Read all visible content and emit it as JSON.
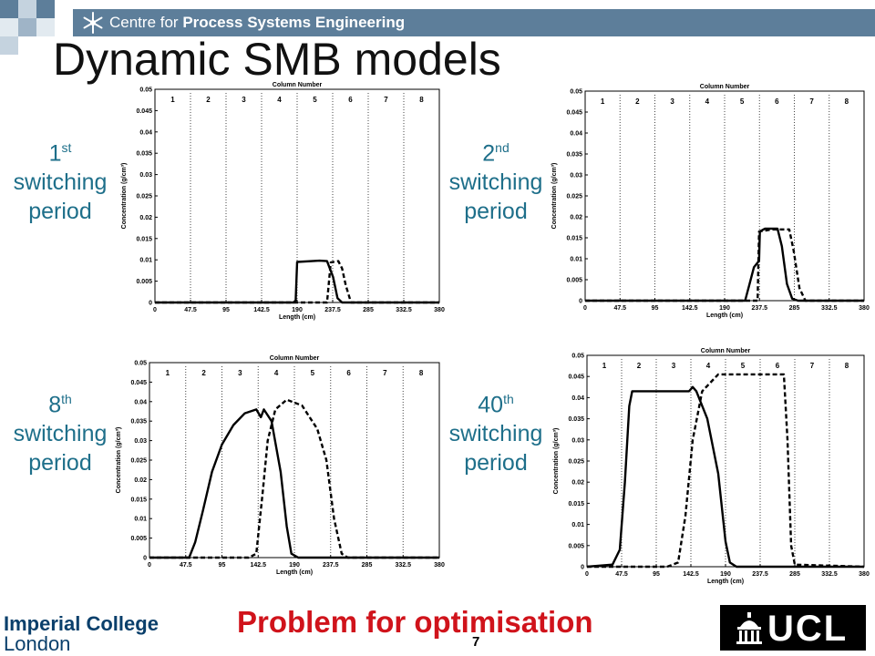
{
  "header": {
    "prefix": "Centre for ",
    "bold": "Process Systems Engineering",
    "accent_color": "#5d7e9a"
  },
  "title": "Dynamic SMB models",
  "labels": [
    {
      "ord": "1",
      "sup": "st",
      "line2": "switching",
      "line3": "period"
    },
    {
      "ord": "2",
      "sup": "nd",
      "line2": "switching",
      "line3": "period"
    },
    {
      "ord": "8",
      "sup": "th",
      "line2": "switching",
      "line3": "period"
    },
    {
      "ord": "40",
      "sup": "th",
      "line2": "switching",
      "line3": "period"
    }
  ],
  "footer": {
    "problem": "Problem for optimisation",
    "page": "7",
    "imperial_line1": "Imperial College",
    "imperial_line2": "London",
    "ucl": "UCL"
  },
  "chart_data": [
    {
      "type": "line",
      "title": "Column Number",
      "xlabel": "Length (cm)",
      "ylabel": "Concentration (g/cm³)",
      "xlim": [
        0,
        380
      ],
      "ylim": [
        0,
        0.05
      ],
      "x_ticks": [
        0,
        47.5,
        95,
        142.5,
        190,
        237.5,
        285,
        332.5,
        380
      ],
      "y_ticks": [
        0,
        0.005,
        0.01,
        0.015,
        0.02,
        0.025,
        0.03,
        0.035,
        0.04,
        0.045,
        0.05
      ],
      "column_numbers": [
        "1",
        "2",
        "3",
        "4",
        "5",
        "6",
        "7",
        "8"
      ],
      "series": [
        {
          "style": "solid",
          "points": [
            [
              0,
              0
            ],
            [
              185,
              0
            ],
            [
              188,
              0.0005
            ],
            [
              190,
              0.0095
            ],
            [
              220,
              0.0098
            ],
            [
              230,
              0.0097
            ],
            [
              238,
              0.006
            ],
            [
              244,
              0.001
            ],
            [
              250,
              0
            ],
            [
              380,
              0
            ]
          ]
        },
        {
          "style": "dashed",
          "points": [
            [
              0,
              0
            ],
            [
              230,
              0
            ],
            [
              235,
              0.0094
            ],
            [
              245,
              0.0097
            ],
            [
              250,
              0.008
            ],
            [
              255,
              0.004
            ],
            [
              262,
              0
            ],
            [
              380,
              0
            ]
          ]
        }
      ]
    },
    {
      "type": "line",
      "title": "Column Number",
      "xlabel": "Length (cm)",
      "ylabel": "Concentration (g/cm³)",
      "xlim": [
        0,
        380
      ],
      "ylim": [
        0,
        0.05
      ],
      "x_ticks": [
        0,
        47.5,
        95,
        142.5,
        190,
        237.5,
        285,
        332.5,
        380
      ],
      "y_ticks": [
        0,
        0.005,
        0.01,
        0.015,
        0.02,
        0.025,
        0.03,
        0.035,
        0.04,
        0.045,
        0.05
      ],
      "column_numbers": [
        "1",
        "2",
        "3",
        "4",
        "5",
        "6",
        "7",
        "8"
      ],
      "series": [
        {
          "style": "solid",
          "points": [
            [
              0,
              0
            ],
            [
              218,
              0
            ],
            [
              224,
              0.004
            ],
            [
              230,
              0.008
            ],
            [
              237,
              0.0095
            ],
            [
              237.5,
              0.0135
            ],
            [
              238,
              0.0165
            ],
            [
              245,
              0.0172
            ],
            [
              262,
              0.0172
            ],
            [
              268,
              0.013
            ],
            [
              275,
              0.004
            ],
            [
              282,
              0.0005
            ],
            [
              290,
              0
            ],
            [
              380,
              0
            ]
          ]
        },
        {
          "style": "dashed",
          "points": [
            [
              0,
              0
            ],
            [
              235,
              0
            ],
            [
              237,
              0.0165
            ],
            [
              255,
              0.017
            ],
            [
              278,
              0.017
            ],
            [
              284,
              0.012
            ],
            [
              292,
              0.003
            ],
            [
              300,
              0
            ],
            [
              380,
              0
            ]
          ]
        }
      ]
    },
    {
      "type": "line",
      "title": "Column Number",
      "xlabel": "Length (cm)",
      "ylabel": "Concentration (g/cm³)",
      "xlim": [
        0,
        380
      ],
      "ylim": [
        0,
        0.05
      ],
      "x_ticks": [
        0,
        47.5,
        95,
        142.5,
        190,
        237.5,
        285,
        332.5,
        380
      ],
      "y_ticks": [
        0,
        0.005,
        0.01,
        0.015,
        0.02,
        0.025,
        0.03,
        0.035,
        0.04,
        0.045,
        0.05
      ],
      "column_numbers": [
        "1",
        "2",
        "3",
        "4",
        "5",
        "6",
        "7",
        "8"
      ],
      "series": [
        {
          "style": "solid",
          "points": [
            [
              0,
              0
            ],
            [
              52,
              0
            ],
            [
              60,
              0.004
            ],
            [
              70,
              0.012
            ],
            [
              82,
              0.022
            ],
            [
              95,
              0.029
            ],
            [
              110,
              0.034
            ],
            [
              125,
              0.037
            ],
            [
              140,
              0.038
            ],
            [
              146,
              0.036
            ],
            [
              150,
              0.038
            ],
            [
              160,
              0.035
            ],
            [
              172,
              0.022
            ],
            [
              180,
              0.008
            ],
            [
              186,
              0.001
            ],
            [
              195,
              0
            ],
            [
              380,
              0
            ]
          ]
        },
        {
          "style": "dashed",
          "points": [
            [
              0,
              0
            ],
            [
              130,
              0
            ],
            [
              140,
              0.001
            ],
            [
              148,
              0.016
            ],
            [
              155,
              0.03
            ],
            [
              165,
              0.038
            ],
            [
              180,
              0.0405
            ],
            [
              200,
              0.039
            ],
            [
              220,
              0.033
            ],
            [
              232,
              0.025
            ],
            [
              242,
              0.01
            ],
            [
              252,
              0.001
            ],
            [
              260,
              0
            ],
            [
              380,
              0
            ]
          ]
        }
      ]
    },
    {
      "type": "line",
      "title": "Column Number",
      "xlabel": "Length (cm)",
      "ylabel": "Concentration (g/cm³)",
      "xlim": [
        0,
        380
      ],
      "ylim": [
        0,
        0.05
      ],
      "x_ticks": [
        0,
        47.5,
        95,
        142.5,
        190,
        237.5,
        285,
        332.5,
        380
      ],
      "y_ticks": [
        0,
        0.005,
        0.01,
        0.015,
        0.02,
        0.025,
        0.03,
        0.035,
        0.04,
        0.045,
        0.05
      ],
      "column_numbers": [
        "1",
        "2",
        "3",
        "4",
        "5",
        "6",
        "7",
        "8"
      ],
      "series": [
        {
          "style": "solid",
          "points": [
            [
              0,
              0
            ],
            [
              35,
              0.0005
            ],
            [
              45,
              0.004
            ],
            [
              52,
              0.02
            ],
            [
              58,
              0.038
            ],
            [
              62,
              0.0415
            ],
            [
              140,
              0.0415
            ],
            [
              145,
              0.0425
            ],
            [
              150,
              0.0415
            ],
            [
              165,
              0.035
            ],
            [
              180,
              0.022
            ],
            [
              190,
              0.006
            ],
            [
              196,
              0.001
            ],
            [
              205,
              0
            ],
            [
              380,
              0
            ]
          ]
        },
        {
          "style": "dashed",
          "points": [
            [
              0,
              0
            ],
            [
              110,
              0
            ],
            [
              125,
              0.001
            ],
            [
              135,
              0.012
            ],
            [
              145,
              0.03
            ],
            [
              158,
              0.0415
            ],
            [
              180,
              0.0455
            ],
            [
              270,
              0.0455
            ],
            [
              275,
              0.03
            ],
            [
              280,
              0.005
            ],
            [
              285,
              0.0005
            ],
            [
              380,
              0
            ]
          ]
        }
      ]
    }
  ]
}
